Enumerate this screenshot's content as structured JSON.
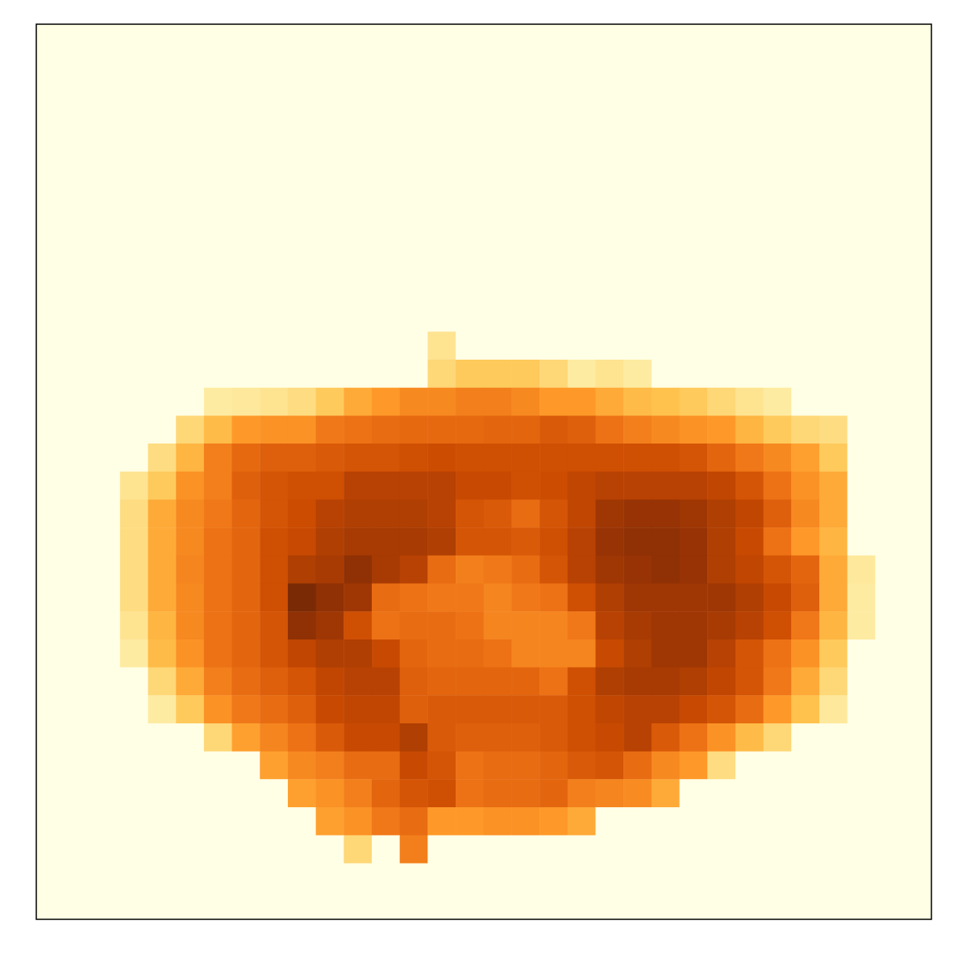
{
  "chart_data": {
    "type": "heatmap",
    "tick_labels": false,
    "zlim": [
      0,
      1
    ],
    "cells": [
      [
        0,
        0,
        0,
        0,
        0,
        0,
        0,
        0,
        0,
        0,
        0,
        0,
        0,
        0,
        0,
        0,
        0,
        0,
        0,
        0,
        0,
        0,
        0,
        0,
        0,
        0,
        0,
        0,
        0,
        0,
        0,
        0
      ],
      [
        0,
        0,
        0,
        0,
        0,
        0,
        0,
        0,
        0,
        0,
        0,
        0,
        0,
        0,
        0,
        0,
        0,
        0,
        0,
        0,
        0,
        0,
        0,
        0,
        0,
        0,
        0,
        0,
        0,
        0,
        0,
        0
      ],
      [
        0,
        0,
        0,
        0,
        0,
        0,
        0,
        0,
        0,
        0,
        0,
        0,
        0,
        0,
        0,
        0,
        0,
        0,
        0,
        0,
        0,
        0,
        0,
        0,
        0,
        0,
        0,
        0,
        0,
        0,
        0,
        0
      ],
      [
        0,
        0,
        0,
        0,
        0,
        0,
        0,
        0,
        0,
        0,
        0,
        0,
        0,
        0,
        0,
        0,
        0,
        0,
        0,
        0,
        0,
        0,
        0,
        0,
        0,
        0,
        0,
        0,
        0,
        0,
        0,
        0
      ],
      [
        0,
        0,
        0,
        0,
        0,
        0,
        0,
        0,
        0,
        0,
        0,
        0,
        0,
        0,
        0,
        0,
        0,
        0,
        0,
        0,
        0,
        0,
        0,
        0,
        0,
        0,
        0,
        0,
        0,
        0,
        0,
        0
      ],
      [
        0,
        0,
        0,
        0,
        0,
        0,
        0,
        0,
        0,
        0,
        0,
        0,
        0,
        0,
        0,
        0,
        0,
        0,
        0,
        0,
        0,
        0,
        0,
        0,
        0,
        0,
        0,
        0,
        0,
        0,
        0,
        0
      ],
      [
        0,
        0,
        0,
        0,
        0,
        0,
        0,
        0,
        0,
        0,
        0,
        0,
        0,
        0,
        0,
        0,
        0,
        0,
        0,
        0,
        0,
        0,
        0,
        0,
        0,
        0,
        0,
        0,
        0,
        0,
        0,
        0
      ],
      [
        0,
        0,
        0,
        0,
        0,
        0,
        0,
        0,
        0,
        0,
        0,
        0,
        0,
        0,
        0,
        0,
        0,
        0,
        0,
        0,
        0,
        0,
        0,
        0,
        0,
        0,
        0,
        0,
        0,
        0,
        0,
        0
      ],
      [
        0,
        0,
        0,
        0,
        0,
        0,
        0,
        0,
        0,
        0,
        0,
        0,
        0,
        0,
        0,
        0,
        0,
        0,
        0,
        0,
        0,
        0,
        0,
        0,
        0,
        0,
        0,
        0,
        0,
        0,
        0,
        0
      ],
      [
        0,
        0,
        0,
        0,
        0,
        0,
        0,
        0,
        0,
        0,
        0,
        0,
        0,
        0,
        0,
        0,
        0,
        0,
        0,
        0,
        0,
        0,
        0,
        0,
        0,
        0,
        0,
        0,
        0,
        0,
        0,
        0
      ],
      [
        0,
        0,
        0,
        0,
        0,
        0,
        0,
        0,
        0,
        0,
        0,
        0,
        0,
        0,
        0,
        0,
        0,
        0,
        0,
        0,
        0,
        0,
        0,
        0,
        0,
        0,
        0,
        0,
        0,
        0,
        0,
        0
      ],
      [
        0,
        0,
        0,
        0,
        0,
        0,
        0,
        0,
        0,
        0,
        0,
        0,
        0,
        0,
        0.25,
        0,
        0,
        0,
        0,
        0,
        0,
        0,
        0,
        0,
        0,
        0,
        0,
        0,
        0,
        0,
        0,
        0
      ],
      [
        0,
        0,
        0,
        0,
        0,
        0,
        0,
        0,
        0,
        0,
        0,
        0,
        0,
        0,
        0.3,
        0.35,
        0.35,
        0.35,
        0.3,
        0.2,
        0.25,
        0.2,
        0,
        0,
        0,
        0,
        0,
        0,
        0,
        0,
        0,
        0
      ],
      [
        0,
        0,
        0,
        0,
        0,
        0,
        0.2,
        0.22,
        0.25,
        0.28,
        0.35,
        0.45,
        0.5,
        0.55,
        0.55,
        0.58,
        0.58,
        0.55,
        0.5,
        0.5,
        0.45,
        0.4,
        0.38,
        0.35,
        0.3,
        0.25,
        0.2,
        0,
        0,
        0,
        0,
        0
      ],
      [
        0,
        0,
        0,
        0,
        0,
        0.3,
        0.4,
        0.5,
        0.52,
        0.52,
        0.6,
        0.62,
        0.64,
        0.65,
        0.65,
        0.65,
        0.66,
        0.66,
        0.7,
        0.68,
        0.62,
        0.58,
        0.55,
        0.52,
        0.5,
        0.42,
        0.35,
        0.3,
        0.28,
        0,
        0,
        0
      ],
      [
        0,
        0,
        0,
        0,
        0.28,
        0.42,
        0.58,
        0.65,
        0.68,
        0.68,
        0.7,
        0.72,
        0.72,
        0.74,
        0.75,
        0.74,
        0.74,
        0.74,
        0.74,
        0.74,
        0.74,
        0.74,
        0.74,
        0.72,
        0.66,
        0.6,
        0.55,
        0.48,
        0.35,
        0,
        0,
        0
      ],
      [
        0,
        0,
        0,
        0.25,
        0.35,
        0.52,
        0.58,
        0.68,
        0.72,
        0.74,
        0.74,
        0.8,
        0.8,
        0.8,
        0.8,
        0.76,
        0.76,
        0.74,
        0.75,
        0.78,
        0.8,
        0.8,
        0.8,
        0.8,
        0.78,
        0.72,
        0.62,
        0.52,
        0.45,
        0,
        0,
        0
      ],
      [
        0,
        0,
        0,
        0.28,
        0.45,
        0.55,
        0.6,
        0.66,
        0.72,
        0.75,
        0.8,
        0.82,
        0.82,
        0.82,
        0.8,
        0.72,
        0.7,
        0.64,
        0.72,
        0.78,
        0.86,
        0.88,
        0.88,
        0.86,
        0.82,
        0.78,
        0.68,
        0.55,
        0.45,
        0,
        0,
        0
      ],
      [
        0,
        0,
        0,
        0.28,
        0.45,
        0.55,
        0.62,
        0.66,
        0.74,
        0.76,
        0.82,
        0.84,
        0.84,
        0.84,
        0.82,
        0.72,
        0.72,
        0.7,
        0.74,
        0.8,
        0.88,
        0.9,
        0.9,
        0.88,
        0.82,
        0.76,
        0.62,
        0.5,
        0.42,
        0,
        0,
        0
      ],
      [
        0,
        0,
        0,
        0.28,
        0.45,
        0.56,
        0.62,
        0.66,
        0.74,
        0.82,
        0.84,
        0.9,
        0.84,
        0.8,
        0.64,
        0.58,
        0.6,
        0.64,
        0.72,
        0.8,
        0.86,
        0.88,
        0.9,
        0.88,
        0.82,
        0.78,
        0.72,
        0.66,
        0.45,
        0.22,
        0,
        0
      ],
      [
        0,
        0,
        0,
        0.28,
        0.45,
        0.55,
        0.62,
        0.66,
        0.74,
        0.95,
        0.9,
        0.86,
        0.64,
        0.62,
        0.6,
        0.6,
        0.56,
        0.6,
        0.62,
        0.74,
        0.82,
        0.86,
        0.86,
        0.86,
        0.86,
        0.82,
        0.76,
        0.68,
        0.45,
        0.2,
        0,
        0
      ],
      [
        0,
        0,
        0,
        0.25,
        0.42,
        0.55,
        0.62,
        0.66,
        0.72,
        0.9,
        0.86,
        0.74,
        0.62,
        0.64,
        0.64,
        0.62,
        0.56,
        0.56,
        0.56,
        0.6,
        0.8,
        0.84,
        0.86,
        0.86,
        0.84,
        0.8,
        0.74,
        0.6,
        0.42,
        0.2,
        0,
        0
      ],
      [
        0,
        0,
        0,
        0.2,
        0.4,
        0.52,
        0.62,
        0.66,
        0.72,
        0.78,
        0.82,
        0.82,
        0.76,
        0.66,
        0.64,
        0.64,
        0.62,
        0.56,
        0.56,
        0.56,
        0.76,
        0.82,
        0.86,
        0.86,
        0.8,
        0.72,
        0.62,
        0.52,
        0.35,
        0,
        0,
        0
      ],
      [
        0,
        0,
        0,
        0,
        0.3,
        0.45,
        0.58,
        0.64,
        0.68,
        0.72,
        0.78,
        0.8,
        0.8,
        0.68,
        0.66,
        0.66,
        0.66,
        0.66,
        0.62,
        0.74,
        0.82,
        0.84,
        0.84,
        0.82,
        0.78,
        0.72,
        0.6,
        0.45,
        0.3,
        0,
        0,
        0
      ],
      [
        0,
        0,
        0,
        0,
        0.2,
        0.35,
        0.52,
        0.6,
        0.64,
        0.68,
        0.76,
        0.78,
        0.78,
        0.68,
        0.7,
        0.7,
        0.7,
        0.7,
        0.7,
        0.74,
        0.78,
        0.8,
        0.8,
        0.76,
        0.72,
        0.64,
        0.5,
        0.38,
        0.22,
        0,
        0,
        0
      ],
      [
        0,
        0,
        0,
        0,
        0,
        0,
        0.3,
        0.48,
        0.56,
        0.62,
        0.7,
        0.76,
        0.76,
        0.82,
        0.7,
        0.68,
        0.68,
        0.68,
        0.7,
        0.74,
        0.76,
        0.8,
        0.7,
        0.62,
        0.52,
        0.4,
        0.3,
        0,
        0,
        0,
        0,
        0
      ],
      [
        0,
        0,
        0,
        0,
        0,
        0,
        0,
        0,
        0.48,
        0.55,
        0.58,
        0.64,
        0.64,
        0.76,
        0.72,
        0.62,
        0.64,
        0.64,
        0.66,
        0.7,
        0.72,
        0.64,
        0.55,
        0.5,
        0.28,
        0,
        0,
        0,
        0,
        0,
        0,
        0
      ],
      [
        0,
        0,
        0,
        0,
        0,
        0,
        0,
        0,
        0,
        0.48,
        0.52,
        0.58,
        0.66,
        0.72,
        0.74,
        0.62,
        0.64,
        0.64,
        0.66,
        0.58,
        0.56,
        0.54,
        0.45,
        0,
        0,
        0,
        0,
        0,
        0,
        0,
        0,
        0
      ],
      [
        0,
        0,
        0,
        0,
        0,
        0,
        0,
        0,
        0,
        0,
        0.48,
        0.52,
        0.6,
        0.64,
        0.5,
        0.5,
        0.52,
        0.52,
        0.5,
        0.45,
        0,
        0,
        0,
        0,
        0,
        0,
        0,
        0,
        0,
        0,
        0,
        0
      ],
      [
        0,
        0,
        0,
        0,
        0,
        0,
        0,
        0,
        0,
        0,
        0,
        0.3,
        0,
        0.58,
        0,
        0,
        0,
        0,
        0,
        0,
        0,
        0,
        0,
        0,
        0,
        0,
        0,
        0,
        0,
        0,
        0,
        0
      ],
      [
        0,
        0,
        0,
        0,
        0,
        0,
        0,
        0,
        0,
        0,
        0,
        0,
        0,
        0,
        0,
        0,
        0,
        0,
        0,
        0,
        0,
        0,
        0,
        0,
        0,
        0,
        0,
        0,
        0,
        0,
        0,
        0
      ],
      [
        0,
        0,
        0,
        0,
        0,
        0,
        0,
        0,
        0,
        0,
        0,
        0,
        0,
        0,
        0,
        0,
        0,
        0,
        0,
        0,
        0,
        0,
        0,
        0,
        0,
        0,
        0,
        0,
        0,
        0,
        0,
        0
      ]
    ]
  }
}
